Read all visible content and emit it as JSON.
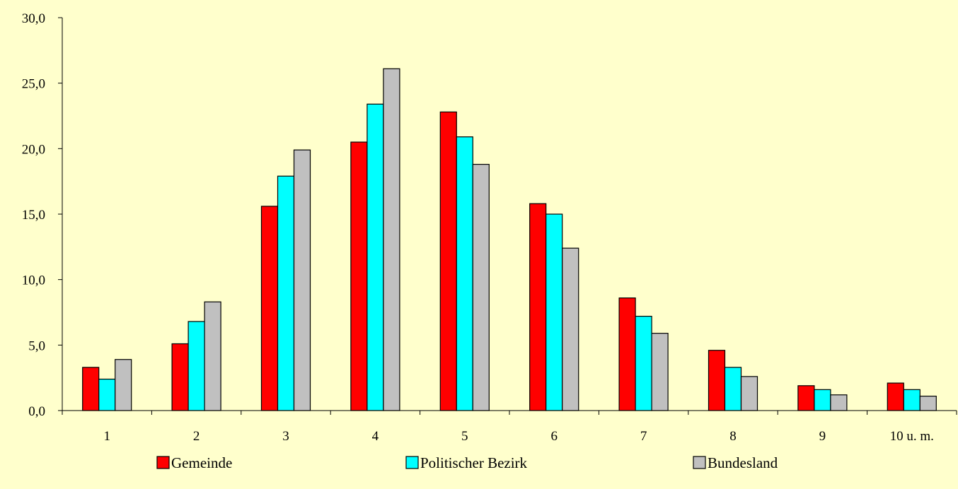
{
  "chart_data": {
    "type": "bar",
    "title": "",
    "xlabel": "",
    "ylabel": "",
    "categories": [
      "1",
      "2",
      "3",
      "4",
      "5",
      "6",
      "7",
      "8",
      "9",
      "10 u. m."
    ],
    "series": [
      {
        "name": "Gemeinde",
        "color": "#FF0000",
        "values": [
          3.3,
          5.1,
          15.6,
          20.5,
          22.8,
          15.8,
          8.6,
          4.6,
          1.9,
          2.1
        ]
      },
      {
        "name": "Politischer Bezirk",
        "color": "#00FFFF",
        "values": [
          2.4,
          6.8,
          17.9,
          23.4,
          20.9,
          15.0,
          7.2,
          3.3,
          1.6,
          1.6
        ]
      },
      {
        "name": "Bundesland",
        "color": "#C0C0C0",
        "values": [
          3.9,
          8.3,
          19.9,
          26.1,
          18.8,
          12.4,
          5.9,
          2.6,
          1.2,
          1.1
        ]
      }
    ],
    "ylim": [
      0,
      30
    ],
    "yticks": [
      "0,0",
      "5,0",
      "10,0",
      "15,0",
      "20,0",
      "25,0",
      "30,0"
    ],
    "grid": false,
    "legend_position": "bottom",
    "background_color": "#FFFFCC"
  }
}
